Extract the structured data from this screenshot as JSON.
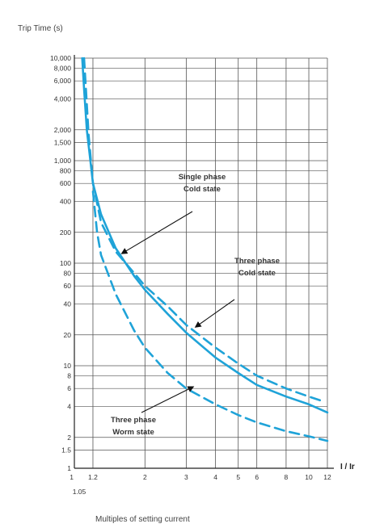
{
  "chart_data": {
    "type": "line",
    "title": "",
    "ylabel": "Trip Time (s)",
    "xlabel": "Multiples of setting current",
    "x_variable": "I / Ir",
    "x_scale": "log",
    "y_scale": "log",
    "xlim": [
      1,
      12
    ],
    "ylim": [
      1,
      10000
    ],
    "grid": true,
    "x_ticks": [
      {
        "value": 1,
        "label": "1"
      },
      {
        "value": 1.05,
        "label": "1.05"
      },
      {
        "value": 1.2,
        "label": "1.2"
      },
      {
        "value": 2,
        "label": "2"
      },
      {
        "value": 3,
        "label": "3"
      },
      {
        "value": 4,
        "label": "4"
      },
      {
        "value": 5,
        "label": "5"
      },
      {
        "value": 6,
        "label": "6"
      },
      {
        "value": 8,
        "label": "8"
      },
      {
        "value": 10,
        "label": "10"
      },
      {
        "value": 12,
        "label": "12"
      }
    ],
    "y_ticks": [
      {
        "value": 1,
        "label": "1"
      },
      {
        "value": 1.5,
        "label": "1.5"
      },
      {
        "value": 2,
        "label": "2"
      },
      {
        "value": 4,
        "label": "4"
      },
      {
        "value": 6,
        "label": "6"
      },
      {
        "value": 8,
        "label": "8"
      },
      {
        "value": 10,
        "label": "10"
      },
      {
        "value": 20,
        "label": "20"
      },
      {
        "value": 40,
        "label": "40"
      },
      {
        "value": 60,
        "label": "60"
      },
      {
        "value": 80,
        "label": "80"
      },
      {
        "value": 100,
        "label": "100"
      },
      {
        "value": 200,
        "label": "200"
      },
      {
        "value": 400,
        "label": "400"
      },
      {
        "value": 600,
        "label": "600"
      },
      {
        "value": 800,
        "label": "800"
      },
      {
        "value": 1000,
        "label": "1,000"
      },
      {
        "value": 1500,
        "label": "1,500"
      },
      {
        "value": 2000,
        "label": "2,000"
      },
      {
        "value": 4000,
        "label": "4,000"
      },
      {
        "value": 6000,
        "label": "6,000"
      },
      {
        "value": 8000,
        "label": "8,000"
      },
      {
        "value": 10000,
        "label": "10,000"
      }
    ],
    "series": [
      {
        "style": "dashed",
        "color": "#1fa3d8",
        "x": [
          1.1,
          1.12,
          1.15,
          1.2,
          1.3,
          1.5,
          1.8,
          2,
          2.5,
          3,
          4,
          5,
          6,
          8,
          10,
          11.5
        ],
        "y": [
          10000,
          5000,
          1800,
          600,
          250,
          130,
          80,
          60,
          38,
          25,
          15,
          10.5,
          8,
          6,
          5,
          4.5
        ]
      },
      {
        "style": "solid",
        "color": "#1fa3d8",
        "x": [
          1.08,
          1.1,
          1.13,
          1.17,
          1.2,
          1.3,
          1.5,
          1.8,
          2,
          2.5,
          3,
          4,
          5,
          6,
          8,
          10,
          12
        ],
        "y": [
          10000,
          5000,
          2000,
          1000,
          600,
          300,
          140,
          75,
          55,
          32,
          21,
          12,
          8.5,
          6.5,
          5,
          4.2,
          3.5
        ]
      },
      {
        "style": "dashed",
        "color": "#1fa3d8",
        "x": [
          1.2,
          1.25,
          1.3,
          1.5,
          1.8,
          2,
          2.5,
          3,
          4,
          5,
          6,
          8,
          10,
          12
        ],
        "y": [
          500,
          200,
          120,
          50,
          22,
          15,
          8.5,
          6,
          4.2,
          3.3,
          2.8,
          2.3,
          2.05,
          1.85
        ]
      }
    ],
    "annotations": [
      {
        "lines": [
          "Single phase",
          "Cold state"
        ],
        "x": 1.6,
        "y": 125
      },
      {
        "lines": [
          "Three phase",
          "Cold state"
        ],
        "x": 3.3,
        "y": 24
      },
      {
        "lines": [
          "Three phase",
          "Worm state"
        ],
        "x": 3.2,
        "y": 6.2
      }
    ]
  }
}
